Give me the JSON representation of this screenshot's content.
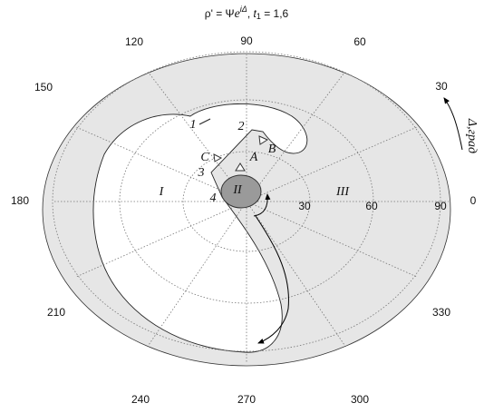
{
  "title": {
    "lhs": "ρ' = Ψ",
    "base": "e",
    "exponent": "iΔ",
    "sep": ", ",
    "var": "t",
    "sub": "1",
    "rhs": " = 1,6"
  },
  "angle_labels": [
    "90",
    "60",
    "30",
    "0",
    "330",
    "300",
    "270",
    "240",
    "210",
    "180",
    "150",
    "120"
  ],
  "radial_labels": [
    "30",
    "60",
    "90"
  ],
  "regions": [
    "I",
    "II",
    "III"
  ],
  "points": [
    "1",
    "2",
    "3",
    "4",
    "A",
    "B",
    "C"
  ],
  "axis_label": "Δ,град"
}
